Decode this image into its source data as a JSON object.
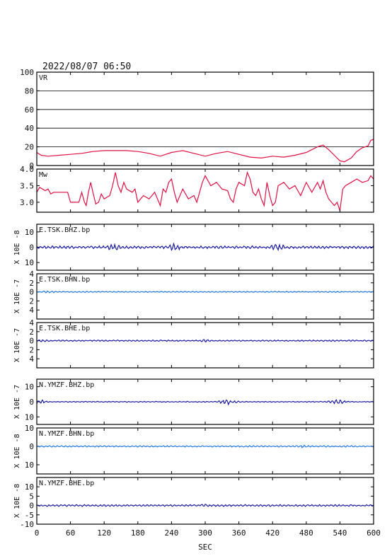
{
  "header": {
    "datetime": "2022/08/07 06:50"
  },
  "chart_data": {
    "type": "line",
    "xlabel": "SEC",
    "xlim": [
      0,
      600
    ],
    "xticks": [
      0,
      60,
      120,
      180,
      240,
      300,
      360,
      420,
      480,
      540,
      600
    ],
    "panels": [
      {
        "id": "vr",
        "label": "VR",
        "unit": "",
        "color": "#dd1144",
        "ylim": [
          0,
          100
        ],
        "yticks": [
          0,
          20,
          40,
          60,
          80,
          100
        ],
        "grid": true,
        "points": [
          [
            0,
            14
          ],
          [
            8,
            11
          ],
          [
            20,
            10
          ],
          [
            40,
            11
          ],
          [
            60,
            12
          ],
          [
            80,
            13
          ],
          [
            100,
            15
          ],
          [
            120,
            16
          ],
          [
            140,
            16
          ],
          [
            160,
            16
          ],
          [
            180,
            15
          ],
          [
            200,
            13
          ],
          [
            220,
            10
          ],
          [
            240,
            14
          ],
          [
            260,
            16
          ],
          [
            280,
            13
          ],
          [
            300,
            10
          ],
          [
            320,
            13
          ],
          [
            340,
            15
          ],
          [
            360,
            12
          ],
          [
            380,
            9
          ],
          [
            400,
            8
          ],
          [
            420,
            10
          ],
          [
            440,
            9
          ],
          [
            460,
            11
          ],
          [
            480,
            14
          ],
          [
            500,
            20
          ],
          [
            510,
            22
          ],
          [
            520,
            17
          ],
          [
            530,
            11
          ],
          [
            540,
            5
          ],
          [
            548,
            4
          ],
          [
            560,
            8
          ],
          [
            570,
            15
          ],
          [
            580,
            19
          ],
          [
            590,
            21
          ],
          [
            595,
            27
          ],
          [
            600,
            28
          ]
        ]
      },
      {
        "id": "mw",
        "label": "Mw",
        "unit": "",
        "color": "#dd1144",
        "ylim": [
          2.7,
          4.0
        ],
        "yticks": [
          3.0,
          3.5,
          4.0
        ],
        "ytick_labels": [
          "3.0",
          "3.5",
          "4.0"
        ],
        "grid": false,
        "points": [
          [
            0,
            3.3
          ],
          [
            5,
            3.45
          ],
          [
            15,
            3.35
          ],
          [
            20,
            3.4
          ],
          [
            25,
            3.25
          ],
          [
            30,
            3.3
          ],
          [
            55,
            3.3
          ],
          [
            60,
            3.0
          ],
          [
            75,
            3.0
          ],
          [
            80,
            3.3
          ],
          [
            85,
            3.0
          ],
          [
            88,
            2.9
          ],
          [
            92,
            3.3
          ],
          [
            96,
            3.6
          ],
          [
            100,
            3.3
          ],
          [
            105,
            2.95
          ],
          [
            110,
            3.0
          ],
          [
            115,
            3.25
          ],
          [
            120,
            3.1
          ],
          [
            130,
            3.2
          ],
          [
            135,
            3.5
          ],
          [
            140,
            3.9
          ],
          [
            145,
            3.5
          ],
          [
            150,
            3.3
          ],
          [
            155,
            3.6
          ],
          [
            160,
            3.4
          ],
          [
            170,
            3.3
          ],
          [
            175,
            3.4
          ],
          [
            180,
            3.0
          ],
          [
            190,
            3.2
          ],
          [
            200,
            3.1
          ],
          [
            210,
            3.3
          ],
          [
            220,
            2.9
          ],
          [
            225,
            3.4
          ],
          [
            230,
            3.3
          ],
          [
            235,
            3.6
          ],
          [
            240,
            3.7
          ],
          [
            245,
            3.3
          ],
          [
            250,
            3.0
          ],
          [
            255,
            3.2
          ],
          [
            260,
            3.4
          ],
          [
            270,
            3.1
          ],
          [
            280,
            3.2
          ],
          [
            285,
            3.0
          ],
          [
            290,
            3.3
          ],
          [
            295,
            3.6
          ],
          [
            300,
            3.8
          ],
          [
            310,
            3.5
          ],
          [
            320,
            3.6
          ],
          [
            330,
            3.4
          ],
          [
            340,
            3.35
          ],
          [
            345,
            3.1
          ],
          [
            350,
            3.0
          ],
          [
            355,
            3.4
          ],
          [
            360,
            3.6
          ],
          [
            370,
            3.5
          ],
          [
            375,
            3.9
          ],
          [
            380,
            3.7
          ],
          [
            385,
            3.3
          ],
          [
            390,
            3.2
          ],
          [
            395,
            3.4
          ],
          [
            400,
            3.1
          ],
          [
            405,
            2.9
          ],
          [
            410,
            3.6
          ],
          [
            415,
            3.2
          ],
          [
            420,
            2.9
          ],
          [
            425,
            3.0
          ],
          [
            430,
            3.5
          ],
          [
            440,
            3.6
          ],
          [
            450,
            3.4
          ],
          [
            460,
            3.5
          ],
          [
            470,
            3.2
          ],
          [
            480,
            3.6
          ],
          [
            490,
            3.3
          ],
          [
            500,
            3.6
          ],
          [
            505,
            3.4
          ],
          [
            510,
            3.65
          ],
          [
            515,
            3.3
          ],
          [
            520,
            3.1
          ],
          [
            525,
            3.0
          ],
          [
            530,
            2.9
          ],
          [
            535,
            3.0
          ],
          [
            540,
            2.75
          ],
          [
            545,
            3.4
          ],
          [
            550,
            3.5
          ],
          [
            560,
            3.6
          ],
          [
            570,
            3.7
          ],
          [
            580,
            3.6
          ],
          [
            590,
            3.65
          ],
          [
            595,
            3.8
          ],
          [
            600,
            3.7
          ]
        ]
      },
      {
        "id": "tsk-bhz",
        "label": "E.TSK.BHZ.bp",
        "unit": "X 10E -8",
        "color": "#1a1a9e",
        "ylim": [
          -15,
          15
        ],
        "yticks": [
          -10,
          0,
          10
        ],
        "ytick_labels": [
          "10",
          "0",
          "10"
        ],
        "grid": false,
        "baseline": 0,
        "amplitude": 0.9,
        "amplitude_max": 2.5,
        "burst_x": [
          135,
          245,
          430
        ]
      },
      {
        "id": "tsk-bhn",
        "label": "E.TSK.BHN.bp",
        "unit": "X 10E -7",
        "color": "#2277dd",
        "ylim": [
          -6,
          4
        ],
        "yticks": [
          -4,
          -2,
          0,
          2,
          4
        ],
        "ytick_labels": [
          "4",
          "2",
          "0",
          "2",
          "4"
        ],
        "grid": false,
        "baseline": 0,
        "amplitude": 0.12,
        "amplitude_max": 0.3,
        "burst_x": [
          20
        ]
      },
      {
        "id": "tsk-bhe",
        "label": "E.TSK.BHE.bp",
        "unit": "X 10E -7",
        "color": "#1a1a9e",
        "ylim": [
          -6,
          4
        ],
        "yticks": [
          -4,
          -2,
          0,
          2,
          4
        ],
        "ytick_labels": [
          "4",
          "2",
          "0",
          "2",
          "4"
        ],
        "grid": false,
        "baseline": 0,
        "amplitude": 0.15,
        "amplitude_max": 0.3,
        "burst_x": [
          10,
          300
        ]
      },
      {
        "id": "ymzf-bhz",
        "label": "N.YMZF.BHZ.bp",
        "unit": "X 10E -7",
        "color": "#1a1a9e",
        "ylim": [
          -15,
          15
        ],
        "yticks": [
          -10,
          0,
          10
        ],
        "ytick_labels": [
          "10",
          "0",
          "10"
        ],
        "grid": false,
        "baseline": 0,
        "amplitude": 0.3,
        "amplitude_max": 2.0,
        "burst_x": [
          0,
          340,
          535
        ]
      },
      {
        "id": "ymzf-bhn",
        "label": "N.YMZF.BHN.bp",
        "unit": "X 10E -8",
        "color": "#2277dd",
        "ylim": [
          -15,
          10
        ],
        "yticks": [
          -10,
          0,
          10
        ],
        "ytick_labels": [
          "10",
          "0",
          "10"
        ],
        "grid": false,
        "baseline": 0,
        "amplitude": 0.4,
        "amplitude_max": 1.0,
        "burst_x": [
          470
        ]
      },
      {
        "id": "ymzf-bhe",
        "label": "N.YMZF.BHE.bp",
        "unit": "X 10E -8",
        "color": "#1a1a9e",
        "ylim": [
          -10,
          15
        ],
        "yticks": [
          -10,
          -5,
          0,
          5,
          10
        ],
        "ytick_labels": [
          "-10",
          "-5",
          "0",
          "5",
          "10"
        ],
        "grid": false,
        "baseline": 0,
        "amplitude": 0.5,
        "amplitude_max": 1.0,
        "burst_x": [
          300
        ]
      }
    ]
  }
}
